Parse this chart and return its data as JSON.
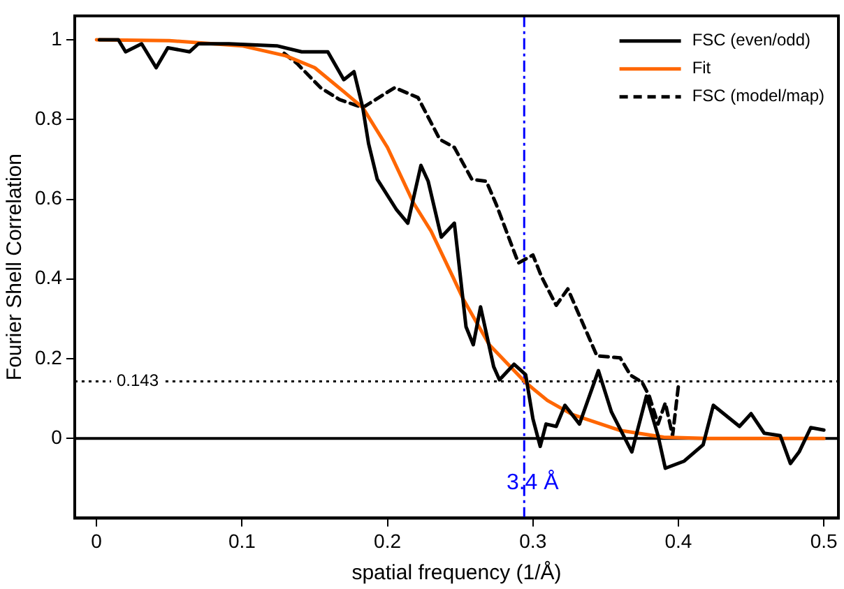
{
  "chart_data": {
    "type": "line",
    "xlabel": "spatial frequency (1/Å)",
    "ylabel": "Fourier Shell Correlation",
    "xlim": [
      -0.015,
      0.51
    ],
    "ylim": [
      -0.2,
      1.06
    ],
    "xticks": [
      0,
      0.1,
      0.2,
      0.3,
      0.4,
      0.5
    ],
    "yticks": [
      0,
      0.2,
      0.4,
      0.6,
      0.8,
      1
    ],
    "grid": false,
    "legend": "top right",
    "marker": "none",
    "series": [
      {
        "name": "FSC (even/odd)",
        "color": "#000000",
        "line_style": "solid",
        "x": [
          0.002,
          0.015,
          0.02,
          0.031,
          0.041,
          0.049,
          0.064,
          0.07,
          0.091,
          0.124,
          0.141,
          0.159,
          0.17,
          0.177,
          0.183,
          0.187,
          0.193,
          0.206,
          0.214,
          0.223,
          0.228,
          0.237,
          0.246,
          0.254,
          0.259,
          0.264,
          0.273,
          0.277,
          0.287,
          0.295,
          0.3,
          0.305,
          0.309,
          0.316,
          0.322,
          0.332,
          0.345,
          0.354,
          0.368,
          0.378,
          0.386,
          0.391,
          0.404,
          0.417,
          0.424,
          0.442,
          0.45,
          0.459,
          0.47,
          0.477,
          0.483,
          0.491,
          0.5
        ],
        "values": [
          1.0,
          1.0,
          0.97,
          0.99,
          0.93,
          0.98,
          0.97,
          0.99,
          0.99,
          0.985,
          0.97,
          0.97,
          0.9,
          0.92,
          0.83,
          0.74,
          0.65,
          0.575,
          0.54,
          0.685,
          0.645,
          0.505,
          0.54,
          0.28,
          0.235,
          0.33,
          0.18,
          0.147,
          0.186,
          0.16,
          0.049,
          -0.02,
          0.036,
          0.03,
          0.083,
          0.036,
          0.17,
          0.066,
          -0.034,
          0.106,
          0.007,
          -0.075,
          -0.057,
          -0.016,
          0.083,
          0.03,
          0.062,
          0.013,
          0.007,
          -0.063,
          -0.034,
          0.027,
          0.021
        ]
      },
      {
        "name": "Fit",
        "color": "#ff6600",
        "line_style": "solid",
        "x": [
          0,
          0.05,
          0.1,
          0.13,
          0.15,
          0.17,
          0.183,
          0.2,
          0.218,
          0.23,
          0.245,
          0.252,
          0.27,
          0.295,
          0.31,
          0.327,
          0.36,
          0.39,
          0.42,
          0.5
        ],
        "values": [
          1,
          0.998,
          0.985,
          0.96,
          0.93,
          0.87,
          0.83,
          0.73,
          0.59,
          0.52,
          0.405,
          0.35,
          0.235,
          0.14,
          0.095,
          0.06,
          0.02,
          0.003,
          0,
          0
        ]
      },
      {
        "name": "FSC (model/map)",
        "color": "#000000",
        "line_style": "dashed",
        "x": [
          0.129,
          0.138,
          0.154,
          0.167,
          0.183,
          0.205,
          0.221,
          0.236,
          0.246,
          0.252,
          0.258,
          0.268,
          0.275,
          0.29,
          0.3,
          0.306,
          0.316,
          0.324,
          0.344,
          0.36,
          0.367,
          0.375,
          0.38,
          0.386,
          0.391,
          0.396,
          0.4
        ],
        "values": [
          0.966,
          0.94,
          0.88,
          0.85,
          0.83,
          0.88,
          0.855,
          0.75,
          0.73,
          0.69,
          0.65,
          0.645,
          0.585,
          0.44,
          0.46,
          0.405,
          0.334,
          0.375,
          0.207,
          0.202,
          0.159,
          0.141,
          0.106,
          0.036,
          0.089,
          0.007,
          0.132
        ]
      }
    ],
    "ref_lines": [
      {
        "axis": "y",
        "value": 0.143,
        "label": "0.143",
        "color": "#000000",
        "line_style": "dotted"
      },
      {
        "axis": "y",
        "value": 0,
        "color": "#000000",
        "line_style": "solid"
      },
      {
        "axis": "x",
        "value": 0.294,
        "label": "3.4 Å",
        "color": "#0000ff",
        "line_style": "dashdot"
      }
    ]
  }
}
